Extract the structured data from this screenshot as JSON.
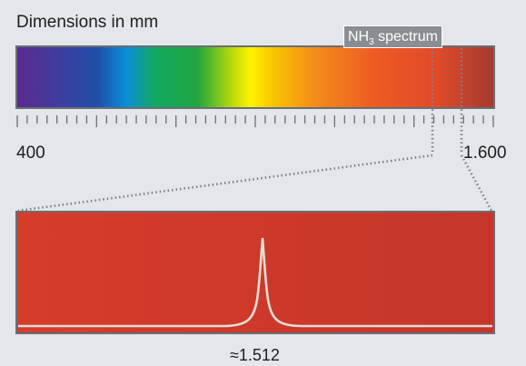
{
  "title": "Dimensions in mm",
  "spectrum_label": {
    "prefix": "NH",
    "subscript": "3",
    "suffix": " spectrum"
  },
  "scale": {
    "min_label": "400",
    "max_label": "1.600"
  },
  "zoom_panel": {
    "peak_label": "≈1.512",
    "background_color": "#d23a2a"
  }
}
